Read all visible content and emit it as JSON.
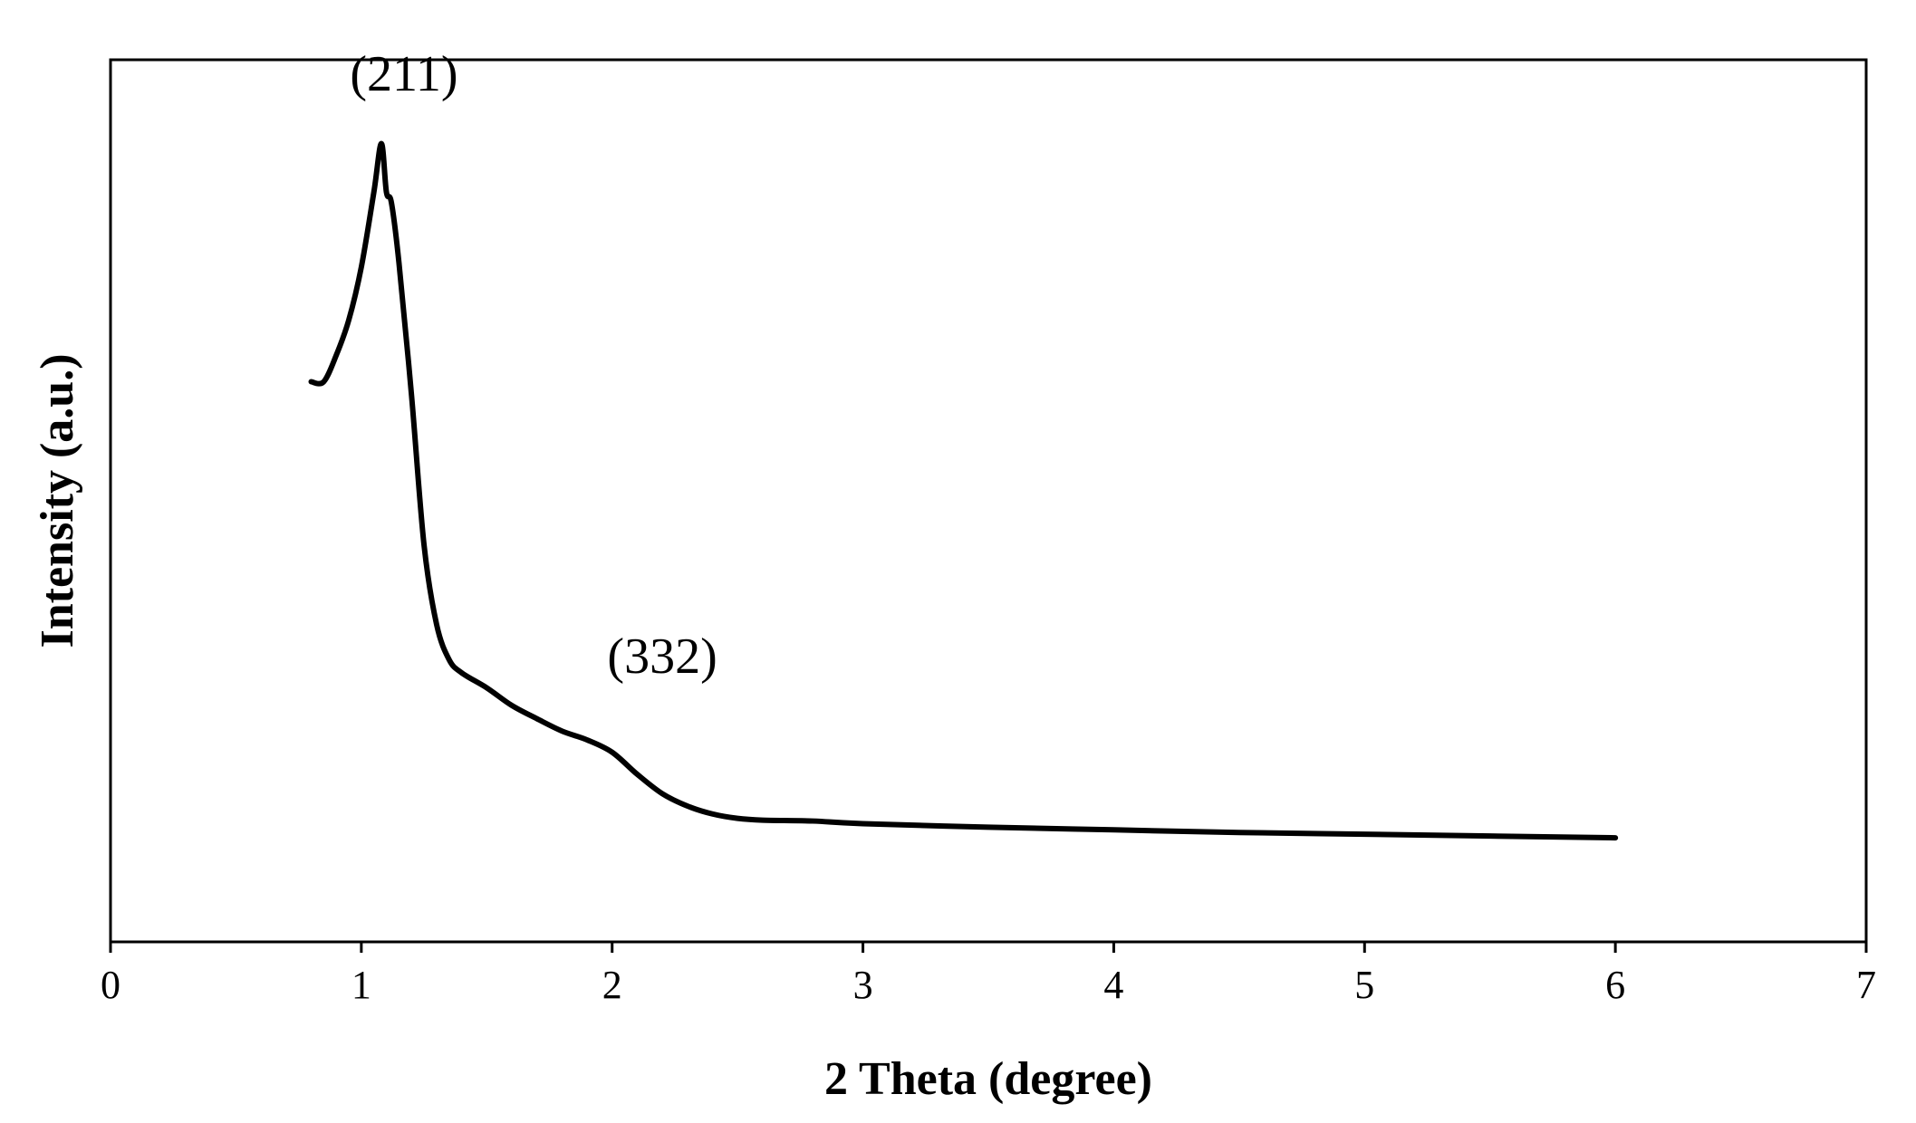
{
  "chart_data": {
    "type": "line",
    "xlabel": "2 Theta (degree)",
    "ylabel": "Intensity (a.u.)",
    "xlim": [
      0,
      7
    ],
    "xticks": [
      "0",
      "1",
      "2",
      "3",
      "4",
      "5",
      "6",
      "7"
    ],
    "ylim": [
      0,
      100
    ],
    "y_ticks_shown": false,
    "grid": false,
    "legend": "none",
    "line_color": "#000000",
    "series": [
      {
        "x": [
          0.8,
          0.85,
          0.9,
          0.95,
          1.0,
          1.05,
          1.08,
          1.1,
          1.12,
          1.15,
          1.2,
          1.25,
          1.3,
          1.35,
          1.4,
          1.5,
          1.6,
          1.7,
          1.8,
          1.9,
          2.0,
          2.1,
          2.2,
          2.3,
          2.4,
          2.5,
          2.6,
          2.8,
          3.0,
          3.5,
          4.0,
          4.5,
          5.0,
          5.5,
          6.0
        ],
        "y": [
          63.5,
          63.5,
          66.5,
          70.5,
          76.5,
          85.0,
          90.5,
          85.0,
          83.8,
          77.0,
          62.0,
          45.0,
          36.0,
          32.0,
          30.5,
          28.8,
          26.8,
          25.3,
          23.9,
          22.9,
          21.5,
          19.0,
          16.8,
          15.4,
          14.5,
          14.0,
          13.8,
          13.7,
          13.4,
          13.0,
          12.7,
          12.4,
          12.2,
          12.0,
          11.8
        ]
      }
    ],
    "annotations": [
      {
        "text": "(211)",
        "x": 1.17,
        "y": 96.5
      },
      {
        "text": "(332)",
        "x": 2.2,
        "y": 30.5
      }
    ]
  }
}
